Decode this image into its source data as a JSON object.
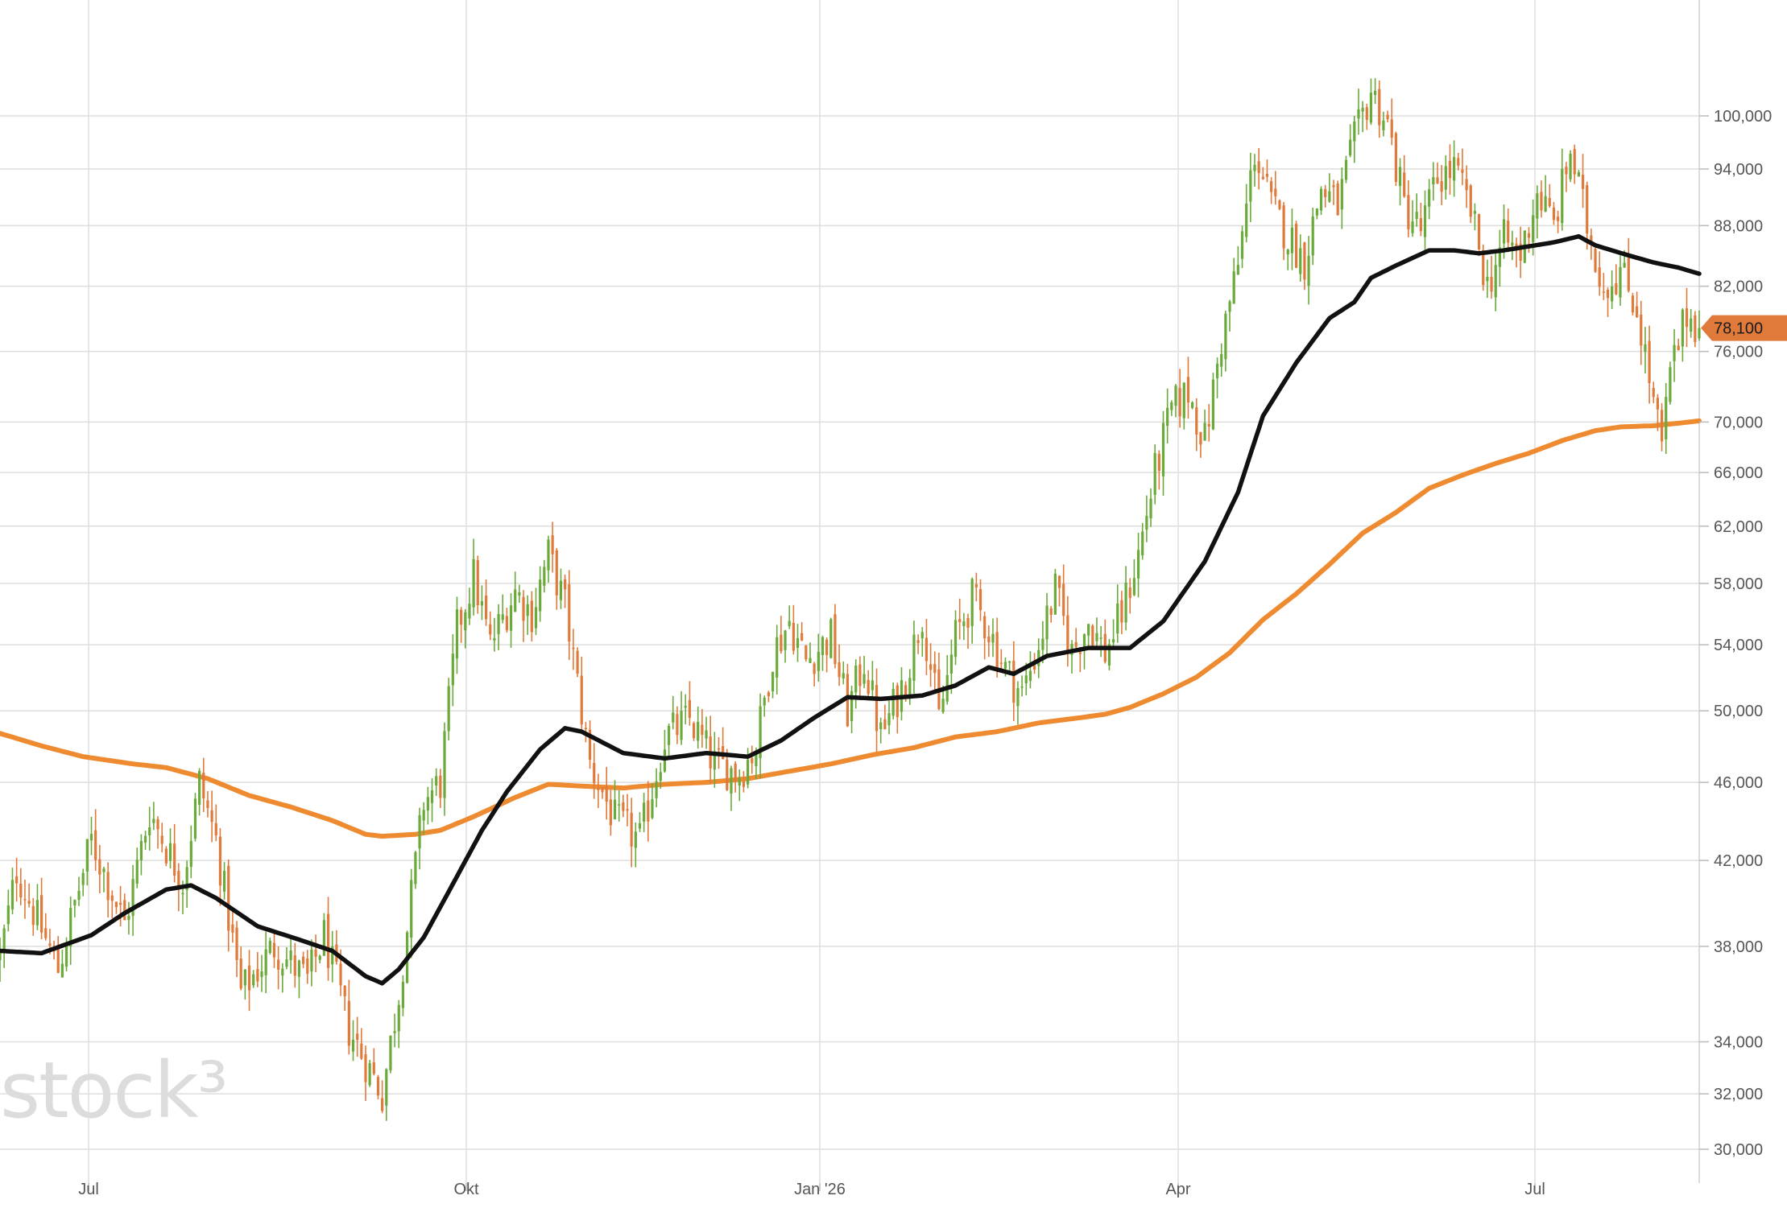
{
  "chart_data": {
    "type": "candlestick",
    "title": "",
    "xlabel": "",
    "ylabel": "",
    "scale": "log",
    "ylim": [
      29500,
      112000
    ],
    "y_ticks": [
      "30,000",
      "32,000",
      "34,000",
      "38,000",
      "42,000",
      "46,000",
      "50,000",
      "54,000",
      "58,000",
      "62,000",
      "66,000",
      "70,000",
      "76,000",
      "82,000",
      "88,000",
      "94,000",
      "100,000"
    ],
    "x_ticks": [
      "Jul",
      "Okt",
      "Jan '26",
      "Apr",
      "Jul"
    ],
    "grid": true,
    "last_price": "78,100",
    "colors": {
      "up": "#6aaa3a",
      "down": "#e07a3a",
      "ma_short": "#111111",
      "ma_long": "#ee8a30",
      "price_tag": "#e07a3a"
    },
    "watermark": "stock³",
    "price_path": [
      [
        0,
        37500
      ],
      [
        4,
        41500
      ],
      [
        14,
        37000
      ],
      [
        22,
        43000
      ],
      [
        30,
        39000
      ],
      [
        36,
        44500
      ],
      [
        44,
        41000
      ],
      [
        48,
        46000
      ],
      [
        52,
        43000
      ],
      [
        58,
        36000
      ],
      [
        66,
        38000
      ],
      [
        74,
        36500
      ],
      [
        78,
        38500
      ],
      [
        84,
        34500
      ],
      [
        92,
        32000
      ],
      [
        96,
        36000
      ],
      [
        102,
        45000
      ],
      [
        106,
        46000
      ],
      [
        110,
        55000
      ],
      [
        114,
        58500
      ],
      [
        118,
        54000
      ],
      [
        124,
        57500
      ],
      [
        128,
        56000
      ],
      [
        132,
        60000
      ],
      [
        136,
        56500
      ],
      [
        142,
        47000
      ],
      [
        148,
        44000
      ],
      [
        154,
        43000
      ],
      [
        160,
        48500
      ],
      [
        166,
        49500
      ],
      [
        172,
        47000
      ],
      [
        178,
        46500
      ],
      [
        182,
        48000
      ],
      [
        186,
        53500
      ],
      [
        190,
        55500
      ],
      [
        194,
        53000
      ],
      [
        200,
        54500
      ],
      [
        204,
        50000
      ],
      [
        208,
        53000
      ],
      [
        212,
        48500
      ],
      [
        218,
        52000
      ],
      [
        222,
        56000
      ],
      [
        226,
        49500
      ],
      [
        230,
        54500
      ],
      [
        234,
        57000
      ],
      [
        238,
        55000
      ],
      [
        242,
        52500
      ],
      [
        246,
        51000
      ],
      [
        250,
        54000
      ],
      [
        254,
        57500
      ],
      [
        258,
        53500
      ],
      [
        262,
        55500
      ],
      [
        266,
        53500
      ],
      [
        270,
        56000
      ],
      [
        274,
        60000
      ],
      [
        278,
        66000
      ],
      [
        282,
        71000
      ],
      [
        286,
        72500
      ],
      [
        290,
        68500
      ],
      [
        294,
        77000
      ],
      [
        298,
        84000
      ],
      [
        302,
        96000
      ],
      [
        306,
        90000
      ],
      [
        310,
        87000
      ],
      [
        314,
        84500
      ],
      [
        318,
        92000
      ],
      [
        322,
        90000
      ],
      [
        326,
        97000
      ],
      [
        330,
        103000
      ],
      [
        334,
        99000
      ],
      [
        338,
        90000
      ],
      [
        342,
        87500
      ],
      [
        346,
        93000
      ],
      [
        350,
        94000
      ],
      [
        354,
        89500
      ],
      [
        358,
        82000
      ],
      [
        362,
        86500
      ],
      [
        366,
        85000
      ],
      [
        370,
        91500
      ],
      [
        374,
        88000
      ],
      [
        378,
        96000
      ],
      [
        382,
        88000
      ],
      [
        386,
        82000
      ],
      [
        390,
        83500
      ],
      [
        394,
        80000
      ],
      [
        398,
        71500
      ],
      [
        400,
        68000
      ],
      [
        402,
        74000
      ],
      [
        406,
        79500
      ],
      [
        409,
        78100
      ]
    ],
    "ma50": [
      [
        0,
        37800
      ],
      [
        10,
        37700
      ],
      [
        22,
        38500
      ],
      [
        30,
        39500
      ],
      [
        40,
        40600
      ],
      [
        46,
        40800
      ],
      [
        52,
        40200
      ],
      [
        62,
        38900
      ],
      [
        72,
        38300
      ],
      [
        80,
        37800
      ],
      [
        88,
        36700
      ],
      [
        92,
        36400
      ],
      [
        96,
        37000
      ],
      [
        102,
        38400
      ],
      [
        108,
        40500
      ],
      [
        116,
        43500
      ],
      [
        122,
        45500
      ],
      [
        130,
        47800
      ],
      [
        136,
        49000
      ],
      [
        140,
        48800
      ],
      [
        150,
        47600
      ],
      [
        160,
        47300
      ],
      [
        170,
        47600
      ],
      [
        180,
        47400
      ],
      [
        188,
        48300
      ],
      [
        196,
        49600
      ],
      [
        204,
        50800
      ],
      [
        212,
        50700
      ],
      [
        222,
        50900
      ],
      [
        230,
        51500
      ],
      [
        238,
        52600
      ],
      [
        244,
        52200
      ],
      [
        252,
        53300
      ],
      [
        262,
        53800
      ],
      [
        272,
        53800
      ],
      [
        280,
        55500
      ],
      [
        290,
        59500
      ],
      [
        298,
        64500
      ],
      [
        304,
        70500
      ],
      [
        312,
        75000
      ],
      [
        320,
        79000
      ],
      [
        326,
        80500
      ],
      [
        330,
        82800
      ],
      [
        336,
        84000
      ],
      [
        344,
        85500
      ],
      [
        350,
        85500
      ],
      [
        356,
        85200
      ],
      [
        362,
        85500
      ],
      [
        368,
        85900
      ],
      [
        374,
        86300
      ],
      [
        380,
        86900
      ],
      [
        384,
        86000
      ],
      [
        392,
        85000
      ],
      [
        398,
        84300
      ],
      [
        404,
        83800
      ],
      [
        409,
        83200
      ]
    ],
    "ma200": [
      [
        0,
        48700
      ],
      [
        10,
        48000
      ],
      [
        20,
        47400
      ],
      [
        32,
        47000
      ],
      [
        40,
        46800
      ],
      [
        50,
        46200
      ],
      [
        60,
        45300
      ],
      [
        70,
        44700
      ],
      [
        80,
        44000
      ],
      [
        88,
        43300
      ],
      [
        92,
        43200
      ],
      [
        100,
        43300
      ],
      [
        106,
        43500
      ],
      [
        114,
        44200
      ],
      [
        124,
        45200
      ],
      [
        132,
        45900
      ],
      [
        140,
        45800
      ],
      [
        150,
        45700
      ],
      [
        160,
        45900
      ],
      [
        170,
        46000
      ],
      [
        180,
        46200
      ],
      [
        190,
        46600
      ],
      [
        200,
        47000
      ],
      [
        210,
        47500
      ],
      [
        220,
        47900
      ],
      [
        230,
        48500
      ],
      [
        240,
        48800
      ],
      [
        250,
        49300
      ],
      [
        260,
        49600
      ],
      [
        266,
        49800
      ],
      [
        272,
        50200
      ],
      [
        280,
        51000
      ],
      [
        288,
        52000
      ],
      [
        296,
        53500
      ],
      [
        304,
        55600
      ],
      [
        312,
        57300
      ],
      [
        320,
        59300
      ],
      [
        328,
        61500
      ],
      [
        336,
        63000
      ],
      [
        344,
        64800
      ],
      [
        352,
        65800
      ],
      [
        360,
        66700
      ],
      [
        368,
        67500
      ],
      [
        376,
        68500
      ],
      [
        384,
        69300
      ],
      [
        390,
        69600
      ],
      [
        398,
        69700
      ],
      [
        404,
        69900
      ],
      [
        409,
        70100
      ]
    ]
  }
}
